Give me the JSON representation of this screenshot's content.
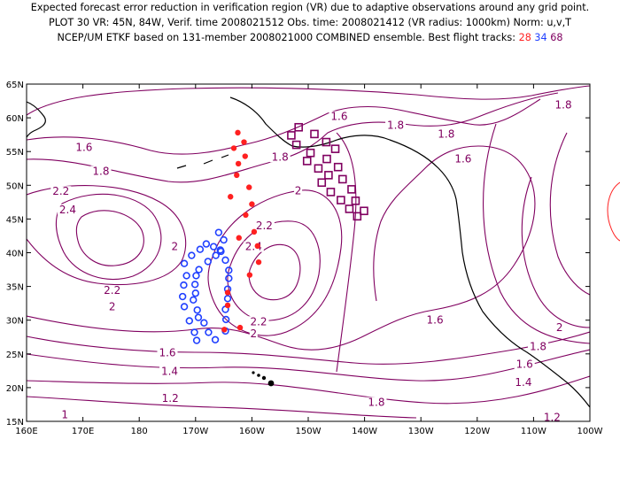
{
  "header": {
    "line1": "Expected forecast error reduction in verification region (VR) due to adaptive observations around any grid point.",
    "line2": "PLOT 30 VR: 45N, 84W, Verif. time 2008021512 Obs. time: 2008021412 (VR radius: 1000km) Norm: u,v,T",
    "line3_prefix": "NCEP/UM ETKF based on 131-member 2008021000 COMBINED ensemble.  Best flight tracks: ",
    "track_28": "28",
    "track_34": "34",
    "track_68": "68"
  },
  "colors": {
    "contour": "#800060",
    "track_28": "#ff2020",
    "track_34": "#2040ff",
    "track_68": "#800060",
    "coast": "#000000",
    "vr_circle": "#ff2020"
  },
  "map": {
    "lon_labels": [
      "160E",
      "170E",
      "180",
      "170W",
      "160W",
      "150W",
      "140W",
      "130W",
      "120W",
      "110W",
      "100W"
    ],
    "lat_labels": [
      "15N",
      "20N",
      "25N",
      "30N",
      "35N",
      "40N",
      "45N",
      "50N",
      "55N",
      "60N",
      "65N"
    ],
    "lon_range": [
      160,
      260
    ],
    "lat_range": [
      15,
      65
    ],
    "contour_labels": [
      {
        "text": "1.6",
        "lon": 215.5,
        "lat": 59.8
      },
      {
        "text": "1.8",
        "lon": 225.5,
        "lat": 58.5
      },
      {
        "text": "1.8",
        "lon": 234.5,
        "lat": 57.2
      },
      {
        "text": "1.8",
        "lon": 255.3,
        "lat": 61.5
      },
      {
        "text": "1.6",
        "lon": 170.2,
        "lat": 55.2
      },
      {
        "text": "1.8",
        "lon": 173.2,
        "lat": 51.7
      },
      {
        "text": "1.8",
        "lon": 205.0,
        "lat": 53.8
      },
      {
        "text": "1.6",
        "lon": 237.5,
        "lat": 53.5
      },
      {
        "text": "2.2",
        "lon": 166.1,
        "lat": 48.7
      },
      {
        "text": "2",
        "lon": 208.2,
        "lat": 48.8
      },
      {
        "text": "2.4",
        "lon": 167.3,
        "lat": 46.0
      },
      {
        "text": "2.2",
        "lon": 202.2,
        "lat": 43.6
      },
      {
        "text": "2",
        "lon": 186.3,
        "lat": 40.5
      },
      {
        "text": "2.4",
        "lon": 200.3,
        "lat": 40.5
      },
      {
        "text": "2.2",
        "lon": 175.2,
        "lat": 34.0
      },
      {
        "text": "2",
        "lon": 175.2,
        "lat": 31.6
      },
      {
        "text": "2.2",
        "lon": 201.2,
        "lat": 29.4
      },
      {
        "text": "2",
        "lon": 200.3,
        "lat": 27.6
      },
      {
        "text": "1.6",
        "lon": 232.5,
        "lat": 29.6
      },
      {
        "text": "2",
        "lon": 254.6,
        "lat": 28.5
      },
      {
        "text": "1.8",
        "lon": 250.8,
        "lat": 25.7
      },
      {
        "text": "1.6",
        "lon": 185.0,
        "lat": 24.8
      },
      {
        "text": "1.6",
        "lon": 248.4,
        "lat": 23.1
      },
      {
        "text": "1.4",
        "lon": 185.4,
        "lat": 22.0
      },
      {
        "text": "1.4",
        "lon": 248.2,
        "lat": 20.4
      },
      {
        "text": "1.2",
        "lon": 185.5,
        "lat": 18.0
      },
      {
        "text": "1.8",
        "lon": 222.1,
        "lat": 17.4
      },
      {
        "text": "1.2",
        "lon": 253.3,
        "lat": 15.2
      },
      {
        "text": "1",
        "lon": 166.8,
        "lat": 15.6
      }
    ],
    "track_28_points": [
      [
        197.5,
        57.8
      ],
      [
        198.6,
        56.4
      ],
      [
        196.8,
        55.5
      ],
      [
        198.8,
        54.3
      ],
      [
        197.6,
        53.2
      ],
      [
        197.3,
        51.5
      ],
      [
        199.5,
        49.7
      ],
      [
        196.2,
        48.3
      ],
      [
        200.0,
        47.2
      ],
      [
        198.9,
        45.6
      ],
      [
        200.4,
        43.1
      ],
      [
        197.7,
        42.2
      ],
      [
        201.0,
        41.0
      ],
      [
        201.2,
        38.6
      ],
      [
        199.6,
        36.7
      ],
      [
        195.7,
        34.1
      ],
      [
        195.7,
        32.2
      ],
      [
        197.9,
        28.9
      ],
      [
        195.1,
        28.6
      ]
    ],
    "track_34_points": [
      [
        194.1,
        43.0
      ],
      [
        195.0,
        41.9
      ],
      [
        194.4,
        40.4
      ],
      [
        193.6,
        39.6
      ],
      [
        192.2,
        38.7
      ],
      [
        190.6,
        37.5
      ],
      [
        190.1,
        36.6
      ],
      [
        189.9,
        35.3
      ],
      [
        190.0,
        34.0
      ],
      [
        189.6,
        33.0
      ],
      [
        190.3,
        31.5
      ],
      [
        190.5,
        30.4
      ],
      [
        191.5,
        29.6
      ],
      [
        192.3,
        28.2
      ],
      [
        193.5,
        27.1
      ],
      [
        195.3,
        28.4
      ],
      [
        195.4,
        30.1
      ],
      [
        195.3,
        31.6
      ],
      [
        195.7,
        33.2
      ],
      [
        195.7,
        34.6
      ],
      [
        195.9,
        36.2
      ],
      [
        195.9,
        37.4
      ],
      [
        195.3,
        38.9
      ],
      [
        194.5,
        40.2
      ],
      [
        193.2,
        40.9
      ],
      [
        191.9,
        41.3
      ],
      [
        190.8,
        40.5
      ],
      [
        189.3,
        39.6
      ],
      [
        188.0,
        38.4
      ],
      [
        188.4,
        36.6
      ],
      [
        187.9,
        35.2
      ],
      [
        187.7,
        33.5
      ],
      [
        188.0,
        32.0
      ],
      [
        188.9,
        29.9
      ],
      [
        189.8,
        28.2
      ],
      [
        190.2,
        27.0
      ]
    ],
    "track_68_points": [
      [
        207.0,
        57.4
      ],
      [
        208.3,
        58.6
      ],
      [
        211.1,
        57.6
      ],
      [
        207.9,
        56.0
      ],
      [
        210.4,
        54.8
      ],
      [
        209.8,
        53.6
      ],
      [
        213.2,
        56.4
      ],
      [
        214.8,
        55.4
      ],
      [
        213.3,
        53.9
      ],
      [
        211.8,
        52.5
      ],
      [
        215.3,
        52.7
      ],
      [
        213.6,
        51.5
      ],
      [
        212.4,
        50.4
      ],
      [
        214.0,
        49.0
      ],
      [
        216.1,
        50.9
      ],
      [
        217.7,
        49.4
      ],
      [
        215.8,
        47.8
      ],
      [
        218.4,
        47.7
      ],
      [
        217.3,
        46.5
      ],
      [
        219.9,
        46.2
      ],
      [
        218.7,
        45.4
      ]
    ]
  }
}
